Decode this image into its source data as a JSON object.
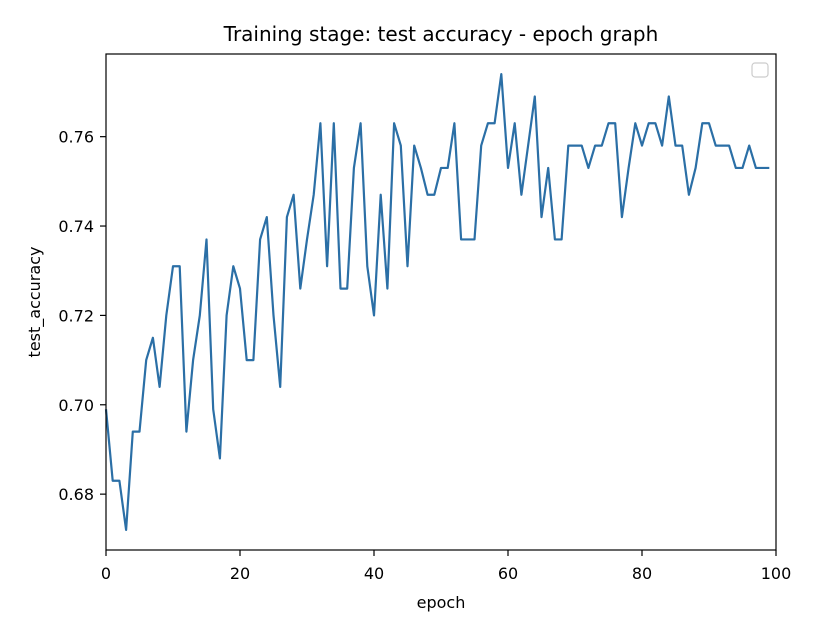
{
  "chart_data": {
    "type": "line",
    "title": "Training stage: test accuracy - epoch graph",
    "xlabel": "epoch",
    "ylabel": "test_accuracy",
    "xlim": [
      0,
      100
    ],
    "ylim": [
      0.6675,
      0.7785
    ],
    "xticks": [
      0,
      20,
      40,
      60,
      80,
      100
    ],
    "yticks": [
      0.68,
      0.7,
      0.72,
      0.74,
      0.76
    ],
    "ytick_labels": [
      "0.68",
      "0.70",
      "0.72",
      "0.74",
      "0.76"
    ],
    "grid": false,
    "legend": {
      "placement": "top-right",
      "entries": []
    },
    "series": [
      {
        "color": "#2b6fa6",
        "x": [
          0,
          1,
          2,
          3,
          4,
          5,
          6,
          7,
          8,
          9,
          10,
          11,
          12,
          13,
          14,
          15,
          16,
          17,
          18,
          19,
          20,
          21,
          22,
          23,
          24,
          25,
          26,
          27,
          28,
          29,
          30,
          31,
          32,
          33,
          34,
          35,
          36,
          37,
          38,
          39,
          40,
          41,
          42,
          43,
          44,
          45,
          46,
          47,
          48,
          49,
          50,
          51,
          52,
          53,
          54,
          55,
          56,
          57,
          58,
          59,
          60,
          61,
          62,
          63,
          64,
          65,
          66,
          67,
          68,
          69,
          70,
          71,
          72,
          73,
          74,
          75,
          76,
          77,
          78,
          79,
          80,
          81,
          82,
          83,
          84,
          85,
          86,
          87,
          88,
          89,
          90,
          91,
          92,
          93,
          94,
          95,
          96,
          97,
          98,
          99
        ],
        "values": [
          0.699,
          0.683,
          0.683,
          0.672,
          0.694,
          0.694,
          0.71,
          0.715,
          0.704,
          0.72,
          0.731,
          0.731,
          0.694,
          0.71,
          0.72,
          0.737,
          0.699,
          0.688,
          0.72,
          0.731,
          0.726,
          0.71,
          0.71,
          0.737,
          0.742,
          0.72,
          0.704,
          0.742,
          0.747,
          0.726,
          0.737,
          0.747,
          0.763,
          0.731,
          0.763,
          0.726,
          0.726,
          0.753,
          0.763,
          0.731,
          0.72,
          0.747,
          0.726,
          0.763,
          0.758,
          0.731,
          0.758,
          0.753,
          0.747,
          0.747,
          0.753,
          0.753,
          0.763,
          0.737,
          0.737,
          0.737,
          0.758,
          0.763,
          0.763,
          0.774,
          0.753,
          0.763,
          0.747,
          0.758,
          0.769,
          0.742,
          0.753,
          0.737,
          0.737,
          0.758,
          0.758,
          0.758,
          0.753,
          0.758,
          0.758,
          0.763,
          0.763,
          0.742,
          0.753,
          0.763,
          0.758,
          0.763,
          0.763,
          0.758,
          0.769,
          0.758,
          0.758,
          0.747,
          0.753,
          0.763,
          0.763,
          0.758,
          0.758,
          0.758,
          0.753,
          0.753,
          0.758,
          0.753,
          0.753,
          0.753
        ]
      }
    ]
  }
}
